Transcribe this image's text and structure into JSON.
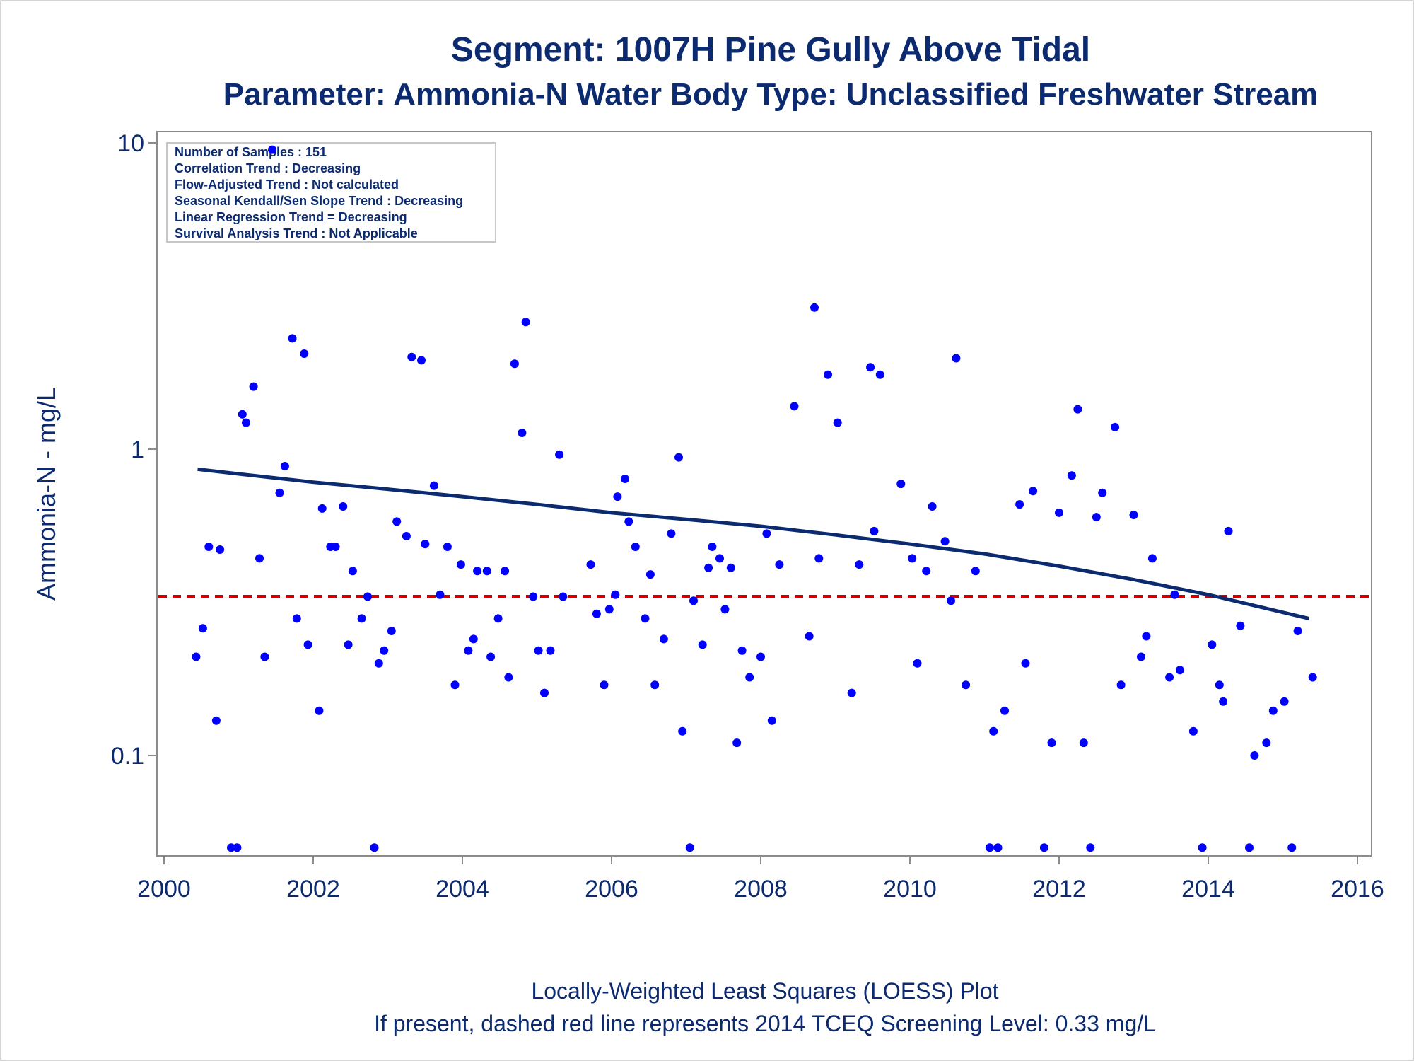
{
  "chart_data": {
    "type": "scatter",
    "title": "Segment: 1007H  Pine Gully Above Tidal",
    "subtitle": "Parameter: Ammonia-N   Water Body Type: Unclassified Freshwater Stream",
    "ylabel": "Ammonia-N - mg/L",
    "xlabel": "",
    "yscale": "log",
    "xlim": [
      2000,
      2016
    ],
    "ylim": [
      0.05,
      10
    ],
    "x_ticks": [
      "2000",
      "2002",
      "2004",
      "2006",
      "2008",
      "2010",
      "2012",
      "2014",
      "2016"
    ],
    "y_ticks": [
      "0.1",
      "1",
      "10"
    ],
    "grid": false,
    "colors": {
      "points": "#0000ff",
      "loess": "#0b2a6f",
      "screening": "#cc0000",
      "text": "#0b2a6f"
    },
    "info_box": [
      "Number of Samples : 151",
      "Correlation Trend : Decreasing",
      "Flow-Adjusted Trend : Not calculated",
      "Seasonal Kendall/Sen Slope Trend : Decreasing",
      "Linear Regression Trend = Decreasing",
      "Survival Analysis Trend : Not Applicable"
    ],
    "screening_level": 0.33,
    "loess": [
      [
        2000.45,
        0.86
      ],
      [
        2001,
        0.83
      ],
      [
        2002,
        0.78
      ],
      [
        2003,
        0.74
      ],
      [
        2004,
        0.7
      ],
      [
        2005,
        0.66
      ],
      [
        2006,
        0.62
      ],
      [
        2007,
        0.59
      ],
      [
        2008,
        0.56
      ],
      [
        2009,
        0.525
      ],
      [
        2010,
        0.49
      ],
      [
        2011,
        0.455
      ],
      [
        2012,
        0.415
      ],
      [
        2013,
        0.375
      ],
      [
        2014,
        0.335
      ],
      [
        2015.35,
        0.28
      ]
    ],
    "points": [
      [
        2000.43,
        0.21
      ],
      [
        2000.52,
        0.26
      ],
      [
        2000.6,
        0.48
      ],
      [
        2000.7,
        0.13
      ],
      [
        2000.75,
        0.47
      ],
      [
        2000.9,
        0.05
      ],
      [
        2000.98,
        0.05
      ],
      [
        2001.05,
        1.3
      ],
      [
        2001.1,
        1.22
      ],
      [
        2001.2,
        1.6
      ],
      [
        2001.28,
        0.44
      ],
      [
        2001.35,
        0.21
      ],
      [
        2001.45,
        9.5
      ],
      [
        2001.55,
        0.72
      ],
      [
        2001.62,
        0.88
      ],
      [
        2001.72,
        2.3
      ],
      [
        2001.78,
        0.28
      ],
      [
        2001.88,
        2.05
      ],
      [
        2001.93,
        0.23
      ],
      [
        2002.08,
        0.14
      ],
      [
        2002.12,
        0.64
      ],
      [
        2002.23,
        0.48
      ],
      [
        2002.3,
        0.48
      ],
      [
        2002.4,
        0.65
      ],
      [
        2002.47,
        0.23
      ],
      [
        2002.53,
        0.4
      ],
      [
        2002.65,
        0.28
      ],
      [
        2002.73,
        0.33
      ],
      [
        2002.82,
        0.05
      ],
      [
        2002.88,
        0.2
      ],
      [
        2002.95,
        0.22
      ],
      [
        2003.05,
        0.255
      ],
      [
        2003.12,
        0.58
      ],
      [
        2003.25,
        0.52
      ],
      [
        2003.32,
        2.0
      ],
      [
        2003.45,
        1.95
      ],
      [
        2003.5,
        0.49
      ],
      [
        2003.62,
        0.76
      ],
      [
        2003.7,
        0.335
      ],
      [
        2003.8,
        0.48
      ],
      [
        2003.9,
        0.17
      ],
      [
        2003.98,
        0.42
      ],
      [
        2004.08,
        0.22
      ],
      [
        2004.15,
        0.24
      ],
      [
        2004.2,
        0.4
      ],
      [
        2004.33,
        0.4
      ],
      [
        2004.38,
        0.21
      ],
      [
        2004.48,
        0.28
      ],
      [
        2004.57,
        0.4
      ],
      [
        2004.62,
        0.18
      ],
      [
        2004.7,
        1.9
      ],
      [
        2004.8,
        1.13
      ],
      [
        2004.85,
        2.6
      ],
      [
        2004.95,
        0.33
      ],
      [
        2005.02,
        0.22
      ],
      [
        2005.1,
        0.16
      ],
      [
        2005.18,
        0.22
      ],
      [
        2005.3,
        0.96
      ],
      [
        2005.35,
        0.33
      ],
      [
        2005.72,
        0.42
      ],
      [
        2005.8,
        0.29
      ],
      [
        2005.9,
        0.17
      ],
      [
        2005.97,
        0.3
      ],
      [
        2006.05,
        0.335
      ],
      [
        2006.08,
        0.7
      ],
      [
        2006.18,
        0.8
      ],
      [
        2006.23,
        0.58
      ],
      [
        2006.32,
        0.48
      ],
      [
        2006.45,
        0.28
      ],
      [
        2006.52,
        0.39
      ],
      [
        2006.58,
        0.17
      ],
      [
        2006.7,
        0.24
      ],
      [
        2006.8,
        0.53
      ],
      [
        2006.9,
        0.94
      ],
      [
        2006.95,
        0.12
      ],
      [
        2007.05,
        0.05
      ],
      [
        2007.1,
        0.32
      ],
      [
        2007.22,
        0.23
      ],
      [
        2007.3,
        0.41
      ],
      [
        2007.35,
        0.48
      ],
      [
        2007.45,
        0.44
      ],
      [
        2007.52,
        0.3
      ],
      [
        2007.6,
        0.41
      ],
      [
        2007.68,
        0.11
      ],
      [
        2007.75,
        0.22
      ],
      [
        2007.85,
        0.18
      ],
      [
        2008.0,
        0.21
      ],
      [
        2008.08,
        0.53
      ],
      [
        2008.15,
        0.13
      ],
      [
        2008.25,
        0.42
      ],
      [
        2008.45,
        1.38
      ],
      [
        2008.65,
        0.245
      ],
      [
        2008.72,
        2.9
      ],
      [
        2008.78,
        0.44
      ],
      [
        2008.9,
        1.75
      ],
      [
        2009.03,
        1.22
      ],
      [
        2009.22,
        0.16
      ],
      [
        2009.32,
        0.42
      ],
      [
        2009.47,
        1.85
      ],
      [
        2009.52,
        0.54
      ],
      [
        2009.6,
        1.75
      ],
      [
        2009.88,
        0.77
      ],
      [
        2010.03,
        0.44
      ],
      [
        2010.1,
        0.2
      ],
      [
        2010.22,
        0.4
      ],
      [
        2010.3,
        0.65
      ],
      [
        2010.47,
        0.5
      ],
      [
        2010.55,
        0.32
      ],
      [
        2010.62,
        1.98
      ],
      [
        2010.75,
        0.17
      ],
      [
        2010.88,
        0.4
      ],
      [
        2011.07,
        0.05
      ],
      [
        2011.12,
        0.12
      ],
      [
        2011.18,
        0.05
      ],
      [
        2011.27,
        0.14
      ],
      [
        2011.47,
        0.66
      ],
      [
        2011.55,
        0.2
      ],
      [
        2011.65,
        0.73
      ],
      [
        2011.8,
        0.05
      ],
      [
        2011.9,
        0.11
      ],
      [
        2012.0,
        0.62
      ],
      [
        2012.17,
        0.82
      ],
      [
        2012.25,
        1.35
      ],
      [
        2012.33,
        0.11
      ],
      [
        2012.42,
        0.05
      ],
      [
        2012.5,
        0.6
      ],
      [
        2012.58,
        0.72
      ],
      [
        2012.75,
        1.18
      ],
      [
        2012.83,
        0.17
      ],
      [
        2013.0,
        0.61
      ],
      [
        2013.1,
        0.21
      ],
      [
        2013.17,
        0.245
      ],
      [
        2013.25,
        0.44
      ],
      [
        2013.48,
        0.18
      ],
      [
        2013.55,
        0.335
      ],
      [
        2013.62,
        0.19
      ],
      [
        2013.8,
        0.12
      ],
      [
        2013.92,
        0.05
      ],
      [
        2014.05,
        0.23
      ],
      [
        2014.15,
        0.17
      ],
      [
        2014.2,
        0.15
      ],
      [
        2014.27,
        0.54
      ],
      [
        2014.43,
        0.265
      ],
      [
        2014.55,
        0.05
      ],
      [
        2014.62,
        0.1
      ],
      [
        2014.78,
        0.11
      ],
      [
        2014.87,
        0.14
      ],
      [
        2015.02,
        0.15
      ],
      [
        2015.12,
        0.05
      ],
      [
        2015.2,
        0.255
      ],
      [
        2015.4,
        0.18
      ]
    ]
  },
  "footer": {
    "line1": "Locally-Weighted Least Squares (LOESS) Plot",
    "line2": "If present, dashed red line represents 2014 TCEQ Screening Level: 0.33 mg/L"
  }
}
